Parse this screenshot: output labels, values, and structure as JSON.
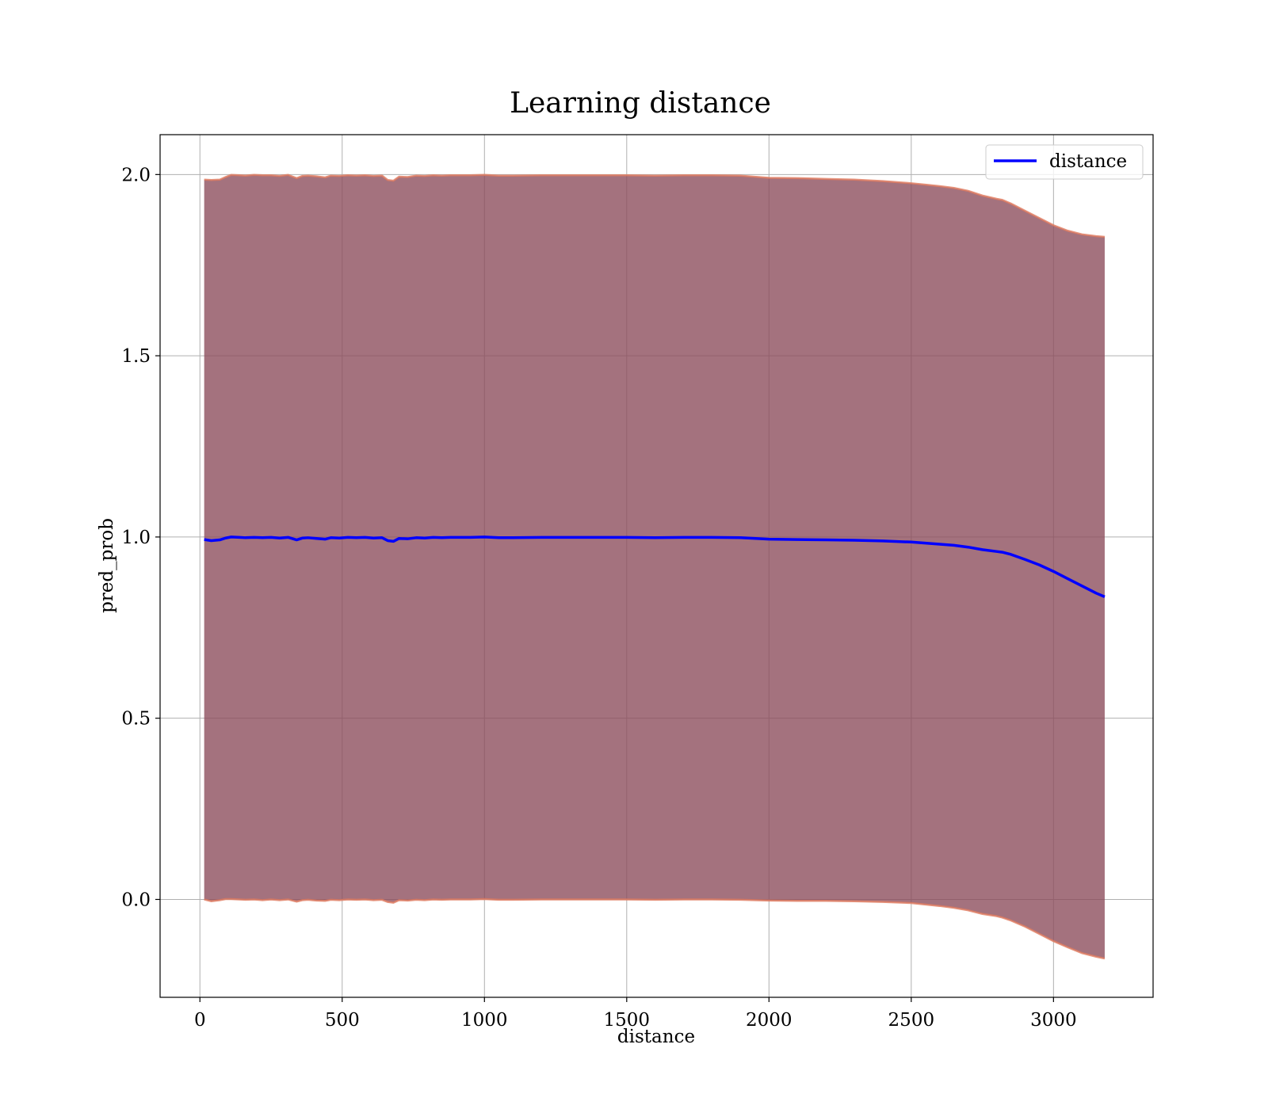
{
  "chart_data": {
    "type": "line",
    "title": "Learning distance",
    "xlabel": "distance",
    "ylabel": "pred_prob",
    "xlim": [
      -140,
      3350
    ],
    "ylim": [
      -0.27,
      2.11
    ],
    "xticks": [
      0,
      500,
      1000,
      1500,
      2000,
      2500,
      3000
    ],
    "xtick_labels": [
      "0",
      "500",
      "1000",
      "1500",
      "2000",
      "2500",
      "3000"
    ],
    "yticks": [
      0.0,
      0.5,
      1.0,
      1.5,
      2.0
    ],
    "ytick_labels": [
      "0.0",
      "0.5",
      "1.0",
      "1.5",
      "2.0"
    ],
    "grid": true,
    "legend_position": "upper right",
    "series": [
      {
        "name": "distance",
        "color": "#0000ff",
        "x": [
          15,
          40,
          70,
          90,
          110,
          140,
          160,
          190,
          220,
          250,
          280,
          310,
          340,
          360,
          380,
          410,
          440,
          460,
          490,
          520,
          550,
          580,
          610,
          640,
          660,
          680,
          700,
          730,
          760,
          790,
          820,
          850,
          880,
          910,
          950,
          1000,
          1050,
          1100,
          1200,
          1300,
          1400,
          1500,
          1600,
          1700,
          1800,
          1900,
          2000,
          2100,
          2200,
          2300,
          2400,
          2500,
          2550,
          2600,
          2650,
          2700,
          2750,
          2800,
          2820,
          2850,
          2900,
          2950,
          3000,
          3050,
          3100,
          3150,
          3180
        ],
        "y": [
          0.993,
          0.99,
          0.992,
          0.997,
          1.0,
          0.999,
          0.998,
          0.999,
          0.998,
          0.999,
          0.997,
          0.999,
          0.992,
          0.997,
          0.998,
          0.996,
          0.994,
          0.998,
          0.997,
          0.999,
          0.998,
          0.999,
          0.997,
          0.998,
          0.99,
          0.988,
          0.996,
          0.995,
          0.998,
          0.997,
          0.999,
          0.998,
          0.999,
          0.999,
          0.999,
          1.0,
          0.998,
          0.998,
          0.999,
          0.999,
          0.999,
          0.999,
          0.998,
          0.999,
          0.999,
          0.998,
          0.994,
          0.993,
          0.992,
          0.991,
          0.989,
          0.986,
          0.983,
          0.98,
          0.977,
          0.972,
          0.965,
          0.96,
          0.958,
          0.952,
          0.938,
          0.923,
          0.905,
          0.885,
          0.865,
          0.845,
          0.835
        ]
      }
    ],
    "band": {
      "color": "#8b4a5a",
      "edge_color": "#e07a5f",
      "x": [
        15,
        40,
        70,
        90,
        110,
        140,
        160,
        190,
        220,
        250,
        280,
        310,
        340,
        360,
        380,
        410,
        440,
        460,
        490,
        520,
        550,
        580,
        610,
        640,
        660,
        680,
        700,
        730,
        760,
        790,
        820,
        850,
        880,
        910,
        950,
        1000,
        1050,
        1100,
        1200,
        1300,
        1400,
        1500,
        1600,
        1700,
        1800,
        1900,
        2000,
        2100,
        2200,
        2300,
        2400,
        2500,
        2550,
        2600,
        2650,
        2700,
        2750,
        2800,
        2820,
        2850,
        2900,
        2950,
        3000,
        3050,
        3100,
        3150,
        3180
      ],
      "upper": [
        1.986,
        1.985,
        1.986,
        1.993,
        1.999,
        1.998,
        1.997,
        1.999,
        1.998,
        1.998,
        1.996,
        1.999,
        1.99,
        1.996,
        1.997,
        1.995,
        1.992,
        1.997,
        1.996,
        1.998,
        1.997,
        1.998,
        1.996,
        1.997,
        1.985,
        1.983,
        1.994,
        1.993,
        1.997,
        1.996,
        1.998,
        1.997,
        1.998,
        1.998,
        1.998,
        1.999,
        1.997,
        1.997,
        1.998,
        1.998,
        1.998,
        1.998,
        1.997,
        1.998,
        1.998,
        1.997,
        1.991,
        1.99,
        1.988,
        1.986,
        1.982,
        1.976,
        1.972,
        1.968,
        1.963,
        1.955,
        1.942,
        1.933,
        1.93,
        1.92,
        1.9,
        1.88,
        1.86,
        1.845,
        1.835,
        1.83,
        1.828
      ],
      "lower": [
        0.0,
        -0.005,
        -0.002,
        0.001,
        0.001,
        0.0,
        -0.001,
        0.0,
        -0.002,
        0.0,
        -0.002,
        0.0,
        -0.006,
        -0.002,
        -0.001,
        -0.003,
        -0.004,
        -0.001,
        -0.002,
        0.0,
        -0.001,
        0.0,
        -0.002,
        -0.001,
        -0.007,
        -0.009,
        -0.002,
        -0.003,
        -0.001,
        -0.002,
        0.0,
        -0.001,
        0.0,
        0.0,
        0.0,
        0.001,
        -0.001,
        -0.001,
        0.0,
        0.0,
        0.0,
        0.0,
        -0.001,
        0.0,
        0.0,
        -0.001,
        -0.003,
        -0.004,
        -0.004,
        -0.005,
        -0.007,
        -0.01,
        -0.014,
        -0.018,
        -0.023,
        -0.03,
        -0.04,
        -0.046,
        -0.05,
        -0.058,
        -0.075,
        -0.095,
        -0.115,
        -0.132,
        -0.148,
        -0.158,
        -0.163
      ]
    }
  }
}
